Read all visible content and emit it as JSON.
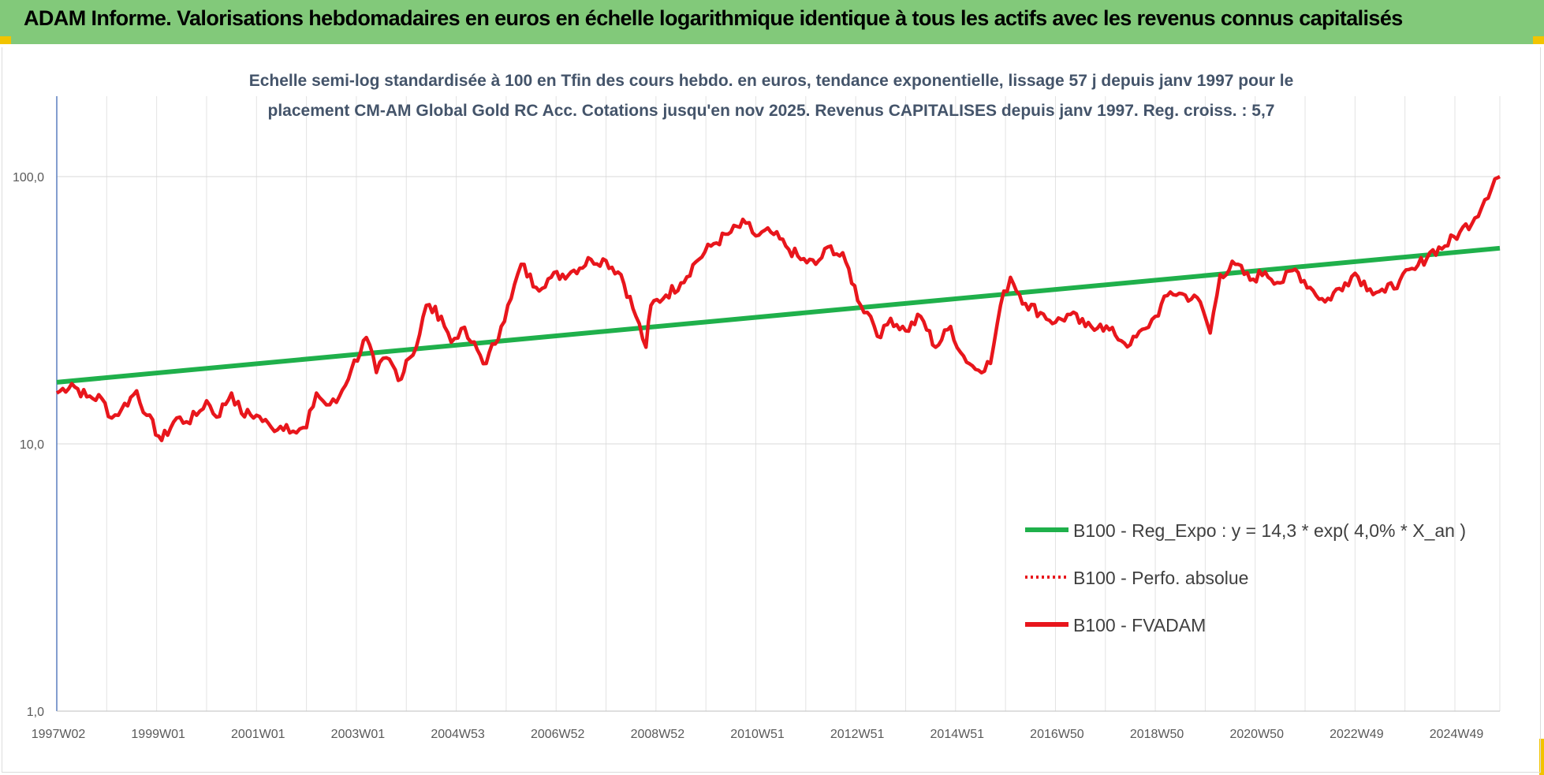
{
  "header": {
    "title": "ADAM Informe. Valorisations hebdomadaires en euros en échelle logarithmique identique à tous les actifs avec les revenus connus capitalisés"
  },
  "chart_data": {
    "type": "line",
    "subtitle_lines": [
      "Echelle semi-log standardisée à 100 en Tfin des cours hebdo. en euros, tendance exponentielle, lissage 57 j depuis janv 1997 pour le",
      "placement CM-AM Global Gold RC Acc. Cotations jusqu'en nov 2025. Revenus CAPITALISES depuis janv 1997. Reg. croiss. : 5,7"
    ],
    "y_scale": "log",
    "ylim": [
      1,
      200
    ],
    "y_ticks": [
      "1,0",
      "10,0",
      "100,0"
    ],
    "y_tick_values": [
      1,
      10,
      100
    ],
    "x_range": [
      1997.0,
      2025.9
    ],
    "x_tick_labels": [
      "1997W02",
      "1999W01",
      "2001W01",
      "2003W01",
      "2004W53",
      "2006W52",
      "2008W52",
      "2010W51",
      "2012W51",
      "2014W51",
      "2016W50",
      "2018W50",
      "2020W50",
      "2022W49",
      "2024W49"
    ],
    "x_tick_values": [
      1997.0,
      1999.0,
      2001.0,
      2003.0,
      2005.0,
      2007.0,
      2009.0,
      2011.0,
      2013.0,
      2015.0,
      2017.0,
      2019.0,
      2021.0,
      2023.0,
      2025.0
    ],
    "grid": true,
    "legend_position": "bottom-right",
    "colors": {
      "regression": "#1fb04b",
      "perf_absolue": "#e8161c",
      "fvadam": "#e8161c"
    },
    "series": [
      {
        "name": "B100 - Reg_Expo : y = 14,3 * exp( 4,0% *  X_an )",
        "style": "solid-green",
        "x": [
          1997.0,
          2025.9
        ],
        "y": [
          17.0,
          54.0
        ]
      },
      {
        "name": "B100 - Perfo. absolue",
        "style": "dotted-red",
        "x": [],
        "y": []
      },
      {
        "name": "B100 - FVADAM",
        "style": "solid-red",
        "x": [
          1997.0,
          1997.3,
          1997.6,
          1997.9,
          1998.1,
          1998.3,
          1998.6,
          1998.8,
          1999.1,
          1999.4,
          1999.6,
          1999.8,
          2000.0,
          2000.2,
          2000.5,
          2000.7,
          2001.0,
          2001.3,
          2001.6,
          2001.8,
          2002.0,
          2002.2,
          2002.4,
          2002.6,
          2002.9,
          2003.2,
          2003.4,
          2003.6,
          2003.9,
          2004.0,
          2004.2,
          2004.4,
          2004.7,
          2004.9,
          2005.1,
          2005.3,
          2005.6,
          2005.9,
          2006.1,
          2006.3,
          2006.6,
          2006.9,
          2007.3,
          2007.7,
          2008.0,
          2008.3,
          2008.6,
          2008.8,
          2008.9,
          2009.2,
          2009.5,
          2009.8,
          2010.1,
          2010.5,
          2010.8,
          2011.0,
          2011.3,
          2011.6,
          2011.9,
          2012.2,
          2012.5,
          2012.8,
          2013.1,
          2013.3,
          2013.5,
          2013.7,
          2014.0,
          2014.3,
          2014.6,
          2014.9,
          2015.1,
          2015.4,
          2015.7,
          2015.9,
          2016.1,
          2016.4,
          2016.7,
          2017.0,
          2017.3,
          2017.6,
          2017.9,
          2018.2,
          2018.5,
          2018.8,
          2019.0,
          2019.3,
          2019.6,
          2019.9,
          2020.1,
          2020.3,
          2020.6,
          2020.9,
          2021.2,
          2021.5,
          2021.8,
          2022.1,
          2022.4,
          2022.8,
          2023.0,
          2023.3,
          2023.6,
          2023.9,
          2024.2,
          2024.5,
          2024.8,
          2025.1,
          2025.4,
          2025.6,
          2025.8,
          2025.9
        ],
        "y": [
          15.5,
          16.8,
          15.0,
          14.8,
          12.5,
          13.5,
          15.8,
          12.8,
          10.3,
          12.5,
          12.1,
          12.8,
          14.5,
          12.6,
          15.5,
          13.0,
          12.8,
          11.5,
          11.8,
          11.0,
          11.5,
          15.5,
          14.0,
          14.3,
          19.0,
          25.0,
          18.5,
          21.0,
          17.5,
          20.5,
          23.0,
          33.0,
          30.0,
          24.0,
          27.0,
          24.0,
          20.0,
          27.5,
          35.0,
          47.0,
          38.5,
          42.0,
          44.0,
          49.0,
          48.5,
          43.0,
          30.0,
          23.0,
          33.0,
          36.0,
          40.0,
          48.0,
          55.0,
          62.0,
          67.0,
          60.0,
          62.0,
          55.0,
          49.0,
          47.0,
          55.0,
          48.0,
          33.0,
          30.0,
          25.0,
          29.5,
          26.5,
          30.0,
          23.0,
          27.5,
          22.0,
          19.0,
          20.0,
          33.0,
          42.0,
          33.5,
          31.0,
          28.5,
          30.5,
          27.5,
          28.0,
          25.5,
          23.5,
          27.0,
          30.0,
          37.0,
          36.0,
          34.0,
          26.0,
          43.0,
          47.0,
          41.0,
          44.0,
          40.0,
          45.0,
          38.5,
          34.0,
          40.0,
          43.5,
          38.0,
          37.0,
          41.0,
          45.0,
          52.0,
          55.0,
          62.0,
          70.0,
          82.0,
          98.0,
          100.0
        ]
      }
    ]
  }
}
